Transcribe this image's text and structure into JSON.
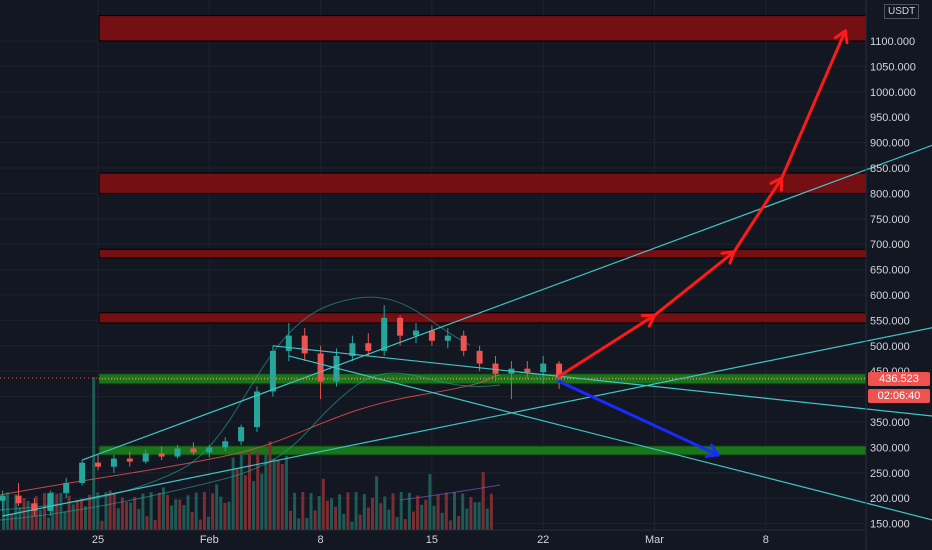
{
  "axis": {
    "unit": "USDT",
    "y_ticks": [
      "1100.000",
      "1050.000",
      "1000.000",
      "950.000",
      "900.000",
      "850.000",
      "800.000",
      "750.000",
      "700.000",
      "650.000",
      "600.000",
      "550.000",
      "500.000",
      "450.000",
      "350.000",
      "300.000",
      "250.000",
      "200.000",
      "150.000"
    ],
    "x_ticks": [
      "25",
      "Feb",
      "8",
      "15",
      "22",
      "Mar",
      "8"
    ]
  },
  "price_tags": {
    "last_price": "436.523",
    "countdown": "02:06:40"
  },
  "colors": {
    "background": "#131722",
    "resistance_zone": "#7a1014",
    "support_zone": "#1a7a1a",
    "trendline": "#40c4c4",
    "bullish_arrow": "#ff1a1a",
    "bearish_arrow": "#1a2aff",
    "candle_up": "#26a69a",
    "candle_down": "#ef5350"
  },
  "chart_data": {
    "type": "candlestick",
    "y_unit": "USDT",
    "ylim": [
      140,
      1140
    ],
    "x_range": [
      "2021-01-19",
      "2021-03-14"
    ],
    "resistance_zones": [
      [
        1100,
        1150
      ],
      [
        800,
        840
      ],
      [
        673,
        690
      ],
      [
        545,
        565
      ]
    ],
    "support_zones": [
      [
        425,
        445
      ],
      [
        285,
        303
      ]
    ],
    "candles": [
      {
        "date": "2021-01-19",
        "open": 195,
        "high": 215,
        "low": 175,
        "close": 205
      },
      {
        "date": "2021-01-20",
        "open": 205,
        "high": 230,
        "low": 185,
        "close": 190
      },
      {
        "date": "2021-01-21",
        "open": 190,
        "high": 200,
        "low": 165,
        "close": 175
      },
      {
        "date": "2021-01-22",
        "open": 175,
        "high": 215,
        "low": 165,
        "close": 210
      },
      {
        "date": "2021-01-23",
        "open": 210,
        "high": 240,
        "low": 200,
        "close": 230
      },
      {
        "date": "2021-01-24",
        "open": 230,
        "high": 275,
        "low": 225,
        "close": 270
      },
      {
        "date": "2021-01-25",
        "open": 270,
        "high": 285,
        "low": 255,
        "close": 262
      },
      {
        "date": "2021-01-26",
        "open": 262,
        "high": 285,
        "low": 250,
        "close": 278
      },
      {
        "date": "2021-01-27",
        "open": 278,
        "high": 292,
        "low": 262,
        "close": 272
      },
      {
        "date": "2021-01-28",
        "open": 272,
        "high": 295,
        "low": 268,
        "close": 288
      },
      {
        "date": "2021-01-29",
        "open": 288,
        "high": 302,
        "low": 275,
        "close": 282
      },
      {
        "date": "2021-01-30",
        "open": 282,
        "high": 305,
        "low": 278,
        "close": 298
      },
      {
        "date": "2021-01-31",
        "open": 298,
        "high": 310,
        "low": 285,
        "close": 290
      },
      {
        "date": "2021-02-01",
        "open": 290,
        "high": 305,
        "low": 280,
        "close": 300
      },
      {
        "date": "2021-02-02",
        "open": 300,
        "high": 320,
        "low": 292,
        "close": 312
      },
      {
        "date": "2021-02-03",
        "open": 312,
        "high": 345,
        "low": 305,
        "close": 340
      },
      {
        "date": "2021-02-04",
        "open": 340,
        "high": 420,
        "low": 330,
        "close": 410
      },
      {
        "date": "2021-02-05",
        "open": 410,
        "high": 500,
        "low": 400,
        "close": 490
      },
      {
        "date": "2021-02-06",
        "open": 490,
        "high": 545,
        "low": 470,
        "close": 520
      },
      {
        "date": "2021-02-07",
        "open": 520,
        "high": 535,
        "low": 470,
        "close": 485
      },
      {
        "date": "2021-02-08",
        "open": 485,
        "high": 500,
        "low": 395,
        "close": 430
      },
      {
        "date": "2021-02-09",
        "open": 430,
        "high": 495,
        "low": 420,
        "close": 480
      },
      {
        "date": "2021-02-10",
        "open": 480,
        "high": 520,
        "low": 470,
        "close": 505
      },
      {
        "date": "2021-02-11",
        "open": 505,
        "high": 525,
        "low": 480,
        "close": 490
      },
      {
        "date": "2021-02-12",
        "open": 490,
        "high": 580,
        "low": 480,
        "close": 555
      },
      {
        "date": "2021-02-13",
        "open": 555,
        "high": 560,
        "low": 500,
        "close": 520
      },
      {
        "date": "2021-02-14",
        "open": 520,
        "high": 545,
        "low": 505,
        "close": 530
      },
      {
        "date": "2021-02-15",
        "open": 530,
        "high": 540,
        "low": 500,
        "close": 510
      },
      {
        "date": "2021-02-16",
        "open": 510,
        "high": 535,
        "low": 495,
        "close": 520
      },
      {
        "date": "2021-02-17",
        "open": 520,
        "high": 530,
        "low": 480,
        "close": 490
      },
      {
        "date": "2021-02-18",
        "open": 490,
        "high": 500,
        "low": 450,
        "close": 465
      },
      {
        "date": "2021-02-19",
        "open": 465,
        "high": 480,
        "low": 430,
        "close": 445
      },
      {
        "date": "2021-02-20",
        "open": 445,
        "high": 470,
        "low": 395,
        "close": 455
      },
      {
        "date": "2021-02-21",
        "open": 455,
        "high": 470,
        "low": 435,
        "close": 448
      },
      {
        "date": "2021-02-22",
        "open": 448,
        "high": 480,
        "low": 425,
        "close": 465
      },
      {
        "date": "2021-02-23",
        "open": 465,
        "high": 470,
        "low": 415,
        "close": 437
      }
    ],
    "arrows": [
      {
        "color": "red",
        "points": [
          [
            "2021-02-23",
            440
          ],
          [
            "2021-03-01",
            560
          ]
        ]
      },
      {
        "color": "red",
        "points": [
          [
            "2021-03-01",
            560
          ],
          [
            "2021-03-06",
            685
          ]
        ]
      },
      {
        "color": "red",
        "points": [
          [
            "2021-03-06",
            685
          ],
          [
            "2021-03-09",
            830
          ]
        ]
      },
      {
        "color": "red",
        "points": [
          [
            "2021-03-09",
            830
          ],
          [
            "2021-03-13",
            1120
          ]
        ]
      },
      {
        "color": "blue",
        "points": [
          [
            "2021-02-23",
            430
          ],
          [
            "2021-03-05",
            285
          ]
        ]
      }
    ],
    "trendlines": [
      {
        "from": [
          "2021-01-24",
          275
        ],
        "to": [
          "2021-03-31",
          1040
        ]
      },
      {
        "from": [
          "2021-01-19",
          165
        ],
        "to": [
          "2021-03-31",
          615
        ]
      },
      {
        "from": [
          "2021-02-05",
          500
        ],
        "to": [
          "2021-03-31",
          320
        ]
      },
      {
        "from": [
          "2021-02-06",
          480
        ],
        "to": [
          "2021-03-20",
          145
        ]
      }
    ]
  }
}
